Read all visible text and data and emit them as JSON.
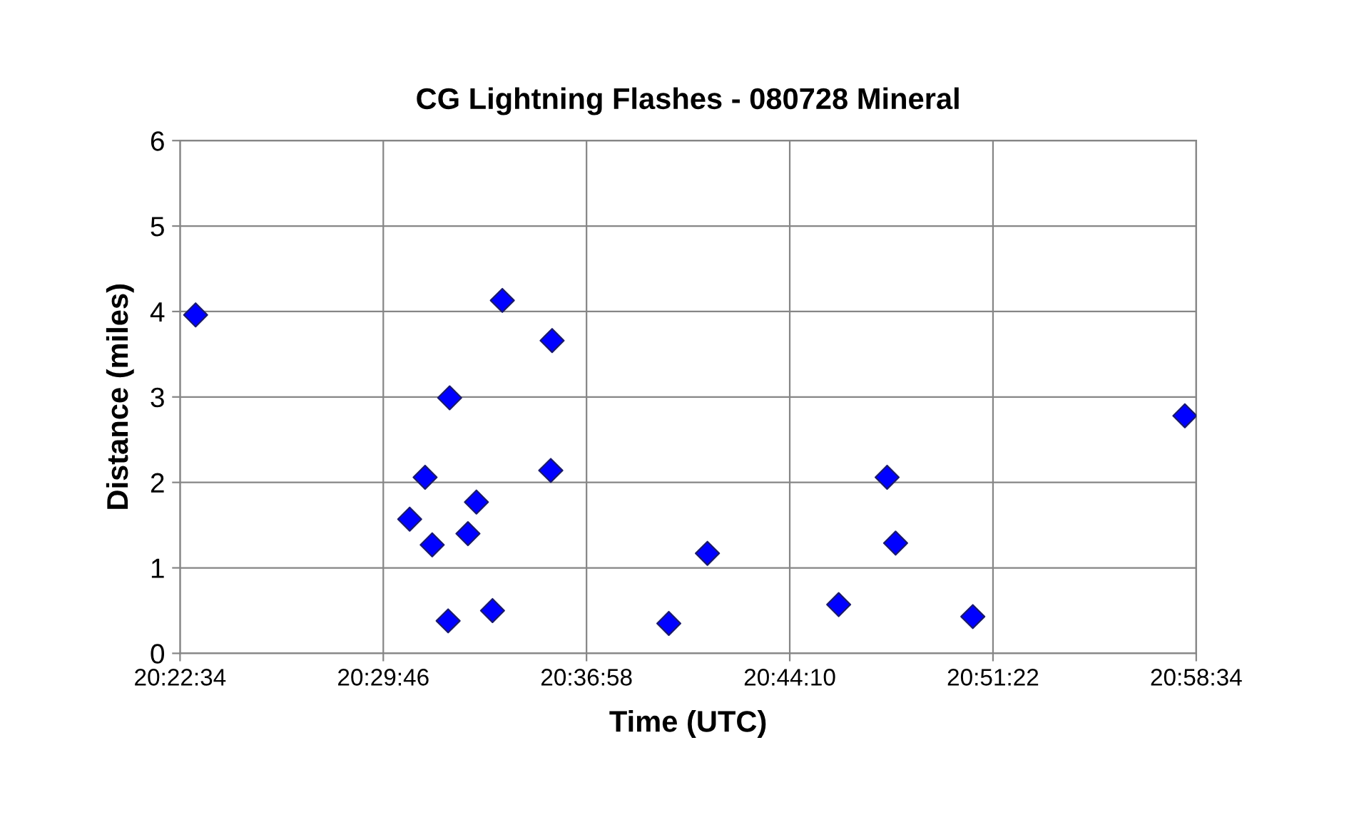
{
  "chart_data": {
    "type": "scatter",
    "title": "CG Lightning Flashes - 080728 Mineral",
    "xlabel": "Time (UTC)",
    "ylabel": "Distance (miles)",
    "x": [
      20.3853,
      20.5117,
      20.5208,
      20.525,
      20.5353,
      20.5344,
      20.5461,
      20.5511,
      20.5606,
      20.5664,
      20.5958,
      20.595,
      20.6647,
      20.6875,
      20.765,
      20.7936,
      20.7986,
      20.8442,
      20.9694
    ],
    "values": [
      3.96,
      1.57,
      2.06,
      1.27,
      2.99,
      0.38,
      1.4,
      1.77,
      0.5,
      4.13,
      3.66,
      2.14,
      0.35,
      1.17,
      0.57,
      2.06,
      1.29,
      0.43,
      2.78
    ],
    "color": "#0000ff",
    "marker": "diamond",
    "grid": true,
    "xlim": [
      20.376111,
      20.976111
    ],
    "xticks": [
      {
        "value": 20.376111,
        "label": "20:22:34"
      },
      {
        "value": 20.496111,
        "label": "20:29:46"
      },
      {
        "value": 20.616111,
        "label": "20:36:58"
      },
      {
        "value": 20.736111,
        "label": "20:44:10"
      },
      {
        "value": 20.856111,
        "label": "20:51:22"
      },
      {
        "value": 20.976111,
        "label": "20:58:34"
      }
    ],
    "ylim": [
      0,
      6
    ],
    "yticks": [
      0,
      1,
      2,
      3,
      4,
      5,
      6
    ]
  }
}
